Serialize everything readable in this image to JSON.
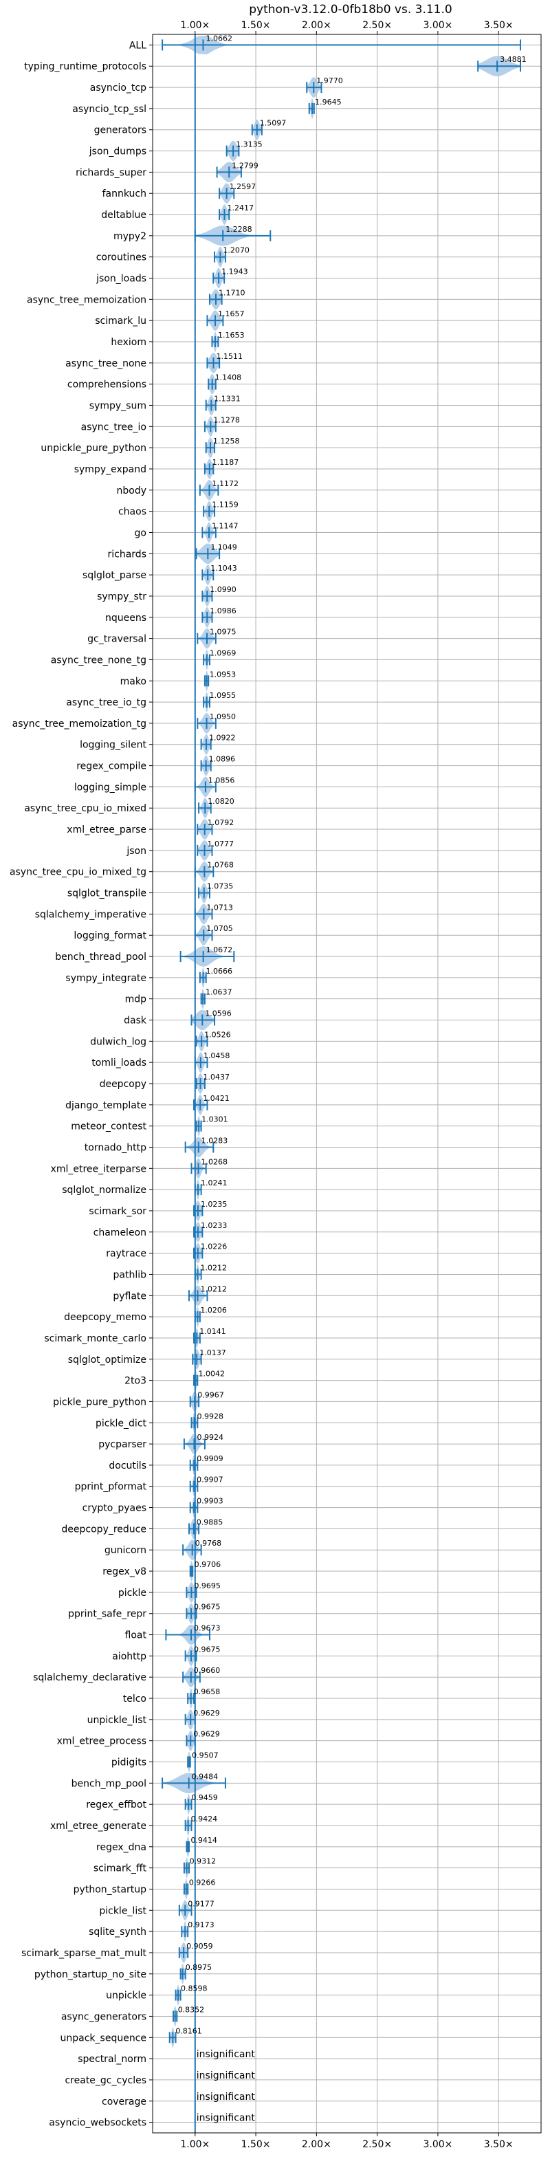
{
  "chart_data": {
    "type": "violin",
    "title": "python-v3.12.0-0fb18b0 vs. 3.11.0",
    "xlabel": "",
    "ylabel": "",
    "xlim": [
      0.65,
      3.85
    ],
    "xticks": [
      1.0,
      1.5,
      2.0,
      2.5,
      3.0,
      3.5
    ],
    "xtick_labels": [
      "1.00×",
      "1.50×",
      "2.00×",
      "2.50×",
      "3.00×",
      "3.50×"
    ],
    "reference_line": 1.0,
    "grid": true,
    "colors": {
      "violin": "#a8c8e6",
      "marker": "#1f77b4",
      "reference": "#1f77b4",
      "grid": "#b0b0b0"
    },
    "insignificant_text": "insignificant",
    "benchmarks": [
      {
        "name": "ALL",
        "value": 1.0662,
        "label": "1.0662",
        "min": 0.73,
        "max": 3.68,
        "spread": 0.08
      },
      {
        "name": "typing_runtime_protocols",
        "value": 3.4881,
        "label": "3.4881",
        "min": 3.33,
        "max": 3.68,
        "spread": 0.09
      },
      {
        "name": "asyncio_tcp",
        "value": 1.977,
        "label": "1.9770",
        "min": 1.92,
        "max": 2.04,
        "spread": 0.03
      },
      {
        "name": "asyncio_tcp_ssl",
        "value": 1.9645,
        "label": "1.9645",
        "min": 1.94,
        "max": 1.98,
        "spread": 0.01
      },
      {
        "name": "generators",
        "value": 1.5097,
        "label": "1.5097",
        "min": 1.47,
        "max": 1.55,
        "spread": 0.02
      },
      {
        "name": "json_dumps",
        "value": 1.3135,
        "label": "1.3135",
        "min": 1.26,
        "max": 1.36,
        "spread": 0.03
      },
      {
        "name": "richards_super",
        "value": 1.2799,
        "label": "1.2799",
        "min": 1.18,
        "max": 1.38,
        "spread": 0.05
      },
      {
        "name": "fannkuch",
        "value": 1.2597,
        "label": "1.2597",
        "min": 1.2,
        "max": 1.32,
        "spread": 0.03
      },
      {
        "name": "deltablue",
        "value": 1.2417,
        "label": "1.2417",
        "min": 1.2,
        "max": 1.28,
        "spread": 0.02
      },
      {
        "name": "mypy2",
        "value": 1.2288,
        "label": "1.2288",
        "min": 1.0,
        "max": 1.62,
        "spread": 0.1
      },
      {
        "name": "coroutines",
        "value": 1.207,
        "label": "1.2070",
        "min": 1.16,
        "max": 1.25,
        "spread": 0.02
      },
      {
        "name": "json_loads",
        "value": 1.1943,
        "label": "1.1943",
        "min": 1.15,
        "max": 1.24,
        "spread": 0.02
      },
      {
        "name": "async_tree_memoization",
        "value": 1.171,
        "label": "1.1710",
        "min": 1.12,
        "max": 1.22,
        "spread": 0.03
      },
      {
        "name": "scimark_lu",
        "value": 1.1657,
        "label": "1.1657",
        "min": 1.1,
        "max": 1.23,
        "spread": 0.03
      },
      {
        "name": "hexiom",
        "value": 1.1653,
        "label": "1.1653",
        "min": 1.14,
        "max": 1.19,
        "spread": 0.01
      },
      {
        "name": "async_tree_none",
        "value": 1.1511,
        "label": "1.1511",
        "min": 1.1,
        "max": 1.2,
        "spread": 0.03
      },
      {
        "name": "comprehensions",
        "value": 1.1408,
        "label": "1.1408",
        "min": 1.11,
        "max": 1.17,
        "spread": 0.02
      },
      {
        "name": "sympy_sum",
        "value": 1.1331,
        "label": "1.1331",
        "min": 1.09,
        "max": 1.17,
        "spread": 0.02
      },
      {
        "name": "async_tree_io",
        "value": 1.1278,
        "label": "1.1278",
        "min": 1.08,
        "max": 1.17,
        "spread": 0.02
      },
      {
        "name": "unpickle_pure_python",
        "value": 1.1258,
        "label": "1.1258",
        "min": 1.09,
        "max": 1.16,
        "spread": 0.02
      },
      {
        "name": "sympy_expand",
        "value": 1.1187,
        "label": "1.1187",
        "min": 1.08,
        "max": 1.15,
        "spread": 0.02
      },
      {
        "name": "nbody",
        "value": 1.1172,
        "label": "1.1172",
        "min": 1.04,
        "max": 1.19,
        "spread": 0.03
      },
      {
        "name": "chaos",
        "value": 1.1159,
        "label": "1.1159",
        "min": 1.07,
        "max": 1.16,
        "spread": 0.02
      },
      {
        "name": "go",
        "value": 1.1147,
        "label": "1.1147",
        "min": 1.06,
        "max": 1.17,
        "spread": 0.02
      },
      {
        "name": "richards",
        "value": 1.1049,
        "label": "1.1049",
        "min": 1.01,
        "max": 1.2,
        "spread": 0.05
      },
      {
        "name": "sqlglot_parse",
        "value": 1.1043,
        "label": "1.1043",
        "min": 1.06,
        "max": 1.15,
        "spread": 0.02
      },
      {
        "name": "sympy_str",
        "value": 1.099,
        "label": "1.0990",
        "min": 1.06,
        "max": 1.14,
        "spread": 0.02
      },
      {
        "name": "nqueens",
        "value": 1.0986,
        "label": "1.0986",
        "min": 1.06,
        "max": 1.14,
        "spread": 0.02
      },
      {
        "name": "gc_traversal",
        "value": 1.0975,
        "label": "1.0975",
        "min": 1.02,
        "max": 1.17,
        "spread": 0.03
      },
      {
        "name": "async_tree_none_tg",
        "value": 1.0969,
        "label": "1.0969",
        "min": 1.07,
        "max": 1.12,
        "spread": 0.01
      },
      {
        "name": "mako",
        "value": 1.0953,
        "label": "1.0953",
        "min": 1.08,
        "max": 1.11,
        "spread": 0.01
      },
      {
        "name": "async_tree_io_tg",
        "value": 1.0955,
        "label": "1.0955",
        "min": 1.07,
        "max": 1.12,
        "spread": 0.01
      },
      {
        "name": "async_tree_memoization_tg",
        "value": 1.095,
        "label": "1.0950",
        "min": 1.02,
        "max": 1.17,
        "spread": 0.03
      },
      {
        "name": "logging_silent",
        "value": 1.0922,
        "label": "1.0922",
        "min": 1.05,
        "max": 1.13,
        "spread": 0.02
      },
      {
        "name": "regex_compile",
        "value": 1.0896,
        "label": "1.0896",
        "min": 1.05,
        "max": 1.13,
        "spread": 0.02
      },
      {
        "name": "logging_simple",
        "value": 1.0856,
        "label": "1.0856",
        "min": 1.0,
        "max": 1.17,
        "spread": 0.03
      },
      {
        "name": "async_tree_cpu_io_mixed",
        "value": 1.082,
        "label": "1.0820",
        "min": 1.03,
        "max": 1.13,
        "spread": 0.02
      },
      {
        "name": "xml_etree_parse",
        "value": 1.0792,
        "label": "1.0792",
        "min": 1.02,
        "max": 1.14,
        "spread": 0.03
      },
      {
        "name": "json",
        "value": 1.0777,
        "label": "1.0777",
        "min": 1.02,
        "max": 1.14,
        "spread": 0.03
      },
      {
        "name": "async_tree_cpu_io_mixed_tg",
        "value": 1.0768,
        "label": "1.0768",
        "min": 1.0,
        "max": 1.15,
        "spread": 0.03
      },
      {
        "name": "sqlglot_transpile",
        "value": 1.0735,
        "label": "1.0735",
        "min": 1.03,
        "max": 1.12,
        "spread": 0.02
      },
      {
        "name": "sqlalchemy_imperative",
        "value": 1.0713,
        "label": "1.0713",
        "min": 1.0,
        "max": 1.14,
        "spread": 0.03
      },
      {
        "name": "logging_format",
        "value": 1.0705,
        "label": "1.0705",
        "min": 1.0,
        "max": 1.14,
        "spread": 0.03
      },
      {
        "name": "bench_thread_pool",
        "value": 1.0672,
        "label": "1.0672",
        "min": 0.88,
        "max": 1.32,
        "spread": 0.07
      },
      {
        "name": "sympy_integrate",
        "value": 1.0666,
        "label": "1.0666",
        "min": 1.04,
        "max": 1.09,
        "spread": 0.01
      },
      {
        "name": "mdp",
        "value": 1.0637,
        "label": "1.0637",
        "min": 1.05,
        "max": 1.08,
        "spread": 0.01
      },
      {
        "name": "dask",
        "value": 1.0596,
        "label": "1.0596",
        "min": 0.97,
        "max": 1.16,
        "spread": 0.05
      },
      {
        "name": "dulwich_log",
        "value": 1.0526,
        "label": "1.0526",
        "min": 1.01,
        "max": 1.1,
        "spread": 0.02
      },
      {
        "name": "tomli_loads",
        "value": 1.0458,
        "label": "1.0458",
        "min": 1.0,
        "max": 1.1,
        "spread": 0.02
      },
      {
        "name": "deepcopy",
        "value": 1.0437,
        "label": "1.0437",
        "min": 1.01,
        "max": 1.08,
        "spread": 0.02
      },
      {
        "name": "django_template",
        "value": 1.0421,
        "label": "1.0421",
        "min": 0.99,
        "max": 1.1,
        "spread": 0.02
      },
      {
        "name": "meteor_contest",
        "value": 1.0301,
        "label": "1.0301",
        "min": 1.01,
        "max": 1.05,
        "spread": 0.01
      },
      {
        "name": "tornado_http",
        "value": 1.0283,
        "label": "1.0283",
        "min": 0.92,
        "max": 1.15,
        "spread": 0.04
      },
      {
        "name": "xml_etree_iterparse",
        "value": 1.0268,
        "label": "1.0268",
        "min": 0.97,
        "max": 1.09,
        "spread": 0.02
      },
      {
        "name": "sqlglot_normalize",
        "value": 1.0241,
        "label": "1.0241",
        "min": 1.0,
        "max": 1.05,
        "spread": 0.01
      },
      {
        "name": "scimark_sor",
        "value": 1.0235,
        "label": "1.0235",
        "min": 0.99,
        "max": 1.06,
        "spread": 0.02
      },
      {
        "name": "chameleon",
        "value": 1.0233,
        "label": "1.0233",
        "min": 0.99,
        "max": 1.06,
        "spread": 0.02
      },
      {
        "name": "raytrace",
        "value": 1.0226,
        "label": "1.0226",
        "min": 0.99,
        "max": 1.06,
        "spread": 0.02
      },
      {
        "name": "pathlib",
        "value": 1.0212,
        "label": "1.0212",
        "min": 1.0,
        "max": 1.05,
        "spread": 0.01
      },
      {
        "name": "pyflate",
        "value": 1.0212,
        "label": "1.0212",
        "min": 0.95,
        "max": 1.1,
        "spread": 0.03
      },
      {
        "name": "deepcopy_memo",
        "value": 1.0206,
        "label": "1.0206",
        "min": 1.0,
        "max": 1.04,
        "spread": 0.01
      },
      {
        "name": "scimark_monte_carlo",
        "value": 1.0141,
        "label": "1.0141",
        "min": 0.99,
        "max": 1.04,
        "spread": 0.01
      },
      {
        "name": "sqlglot_optimize",
        "value": 1.0137,
        "label": "1.0137",
        "min": 0.98,
        "max": 1.05,
        "spread": 0.02
      },
      {
        "name": "2to3",
        "value": 1.0042,
        "label": "1.0042",
        "min": 0.99,
        "max": 1.02,
        "spread": 0.01
      },
      {
        "name": "pickle_pure_python",
        "value": 0.9967,
        "label": "0.9967",
        "min": 0.96,
        "max": 1.03,
        "spread": 0.02
      },
      {
        "name": "pickle_dict",
        "value": 0.9928,
        "label": "0.9928",
        "min": 0.97,
        "max": 1.02,
        "spread": 0.01
      },
      {
        "name": "pycparser",
        "value": 0.9924,
        "label": "0.9924",
        "min": 0.91,
        "max": 1.08,
        "spread": 0.03
      },
      {
        "name": "docutils",
        "value": 0.9909,
        "label": "0.9909",
        "min": 0.96,
        "max": 1.02,
        "spread": 0.01
      },
      {
        "name": "pprint_pformat",
        "value": 0.9907,
        "label": "0.9907",
        "min": 0.96,
        "max": 1.02,
        "spread": 0.01
      },
      {
        "name": "crypto_pyaes",
        "value": 0.9903,
        "label": "0.9903",
        "min": 0.96,
        "max": 1.02,
        "spread": 0.01
      },
      {
        "name": "deepcopy_reduce",
        "value": 0.9885,
        "label": "0.9885",
        "min": 0.95,
        "max": 1.03,
        "spread": 0.02
      },
      {
        "name": "gunicorn",
        "value": 0.9768,
        "label": "0.9768",
        "min": 0.9,
        "max": 1.05,
        "spread": 0.03
      },
      {
        "name": "regex_v8",
        "value": 0.9706,
        "label": "0.9706",
        "min": 0.96,
        "max": 0.98,
        "spread": 0.01
      },
      {
        "name": "pickle",
        "value": 0.9695,
        "label": "0.9695",
        "min": 0.93,
        "max": 1.01,
        "spread": 0.02
      },
      {
        "name": "pprint_safe_repr",
        "value": 0.9675,
        "label": "0.9675",
        "min": 0.93,
        "max": 1.01,
        "spread": 0.02
      },
      {
        "name": "float",
        "value": 0.9673,
        "label": "0.9673",
        "min": 0.76,
        "max": 1.12,
        "spread": 0.04
      },
      {
        "name": "aiohttp",
        "value": 0.9675,
        "label": "0.9675",
        "min": 0.92,
        "max": 1.01,
        "spread": 0.02
      },
      {
        "name": "sqlalchemy_declarative",
        "value": 0.966,
        "label": "0.9660",
        "min": 0.9,
        "max": 1.04,
        "spread": 0.03
      },
      {
        "name": "telco",
        "value": 0.9658,
        "label": "0.9658",
        "min": 0.94,
        "max": 0.99,
        "spread": 0.01
      },
      {
        "name": "unpickle_list",
        "value": 0.9629,
        "label": "0.9629",
        "min": 0.92,
        "max": 1.0,
        "spread": 0.02
      },
      {
        "name": "xml_etree_process",
        "value": 0.9629,
        "label": "0.9629",
        "min": 0.93,
        "max": 1.0,
        "spread": 0.02
      },
      {
        "name": "pidigits",
        "value": 0.9507,
        "label": "0.9507",
        "min": 0.94,
        "max": 0.96,
        "spread": 0.01
      },
      {
        "name": "bench_mp_pool",
        "value": 0.9484,
        "label": "0.9484",
        "min": 0.73,
        "max": 1.25,
        "spread": 0.09
      },
      {
        "name": "regex_effbot",
        "value": 0.9459,
        "label": "0.9459",
        "min": 0.92,
        "max": 0.97,
        "spread": 0.01
      },
      {
        "name": "xml_etree_generate",
        "value": 0.9424,
        "label": "0.9424",
        "min": 0.92,
        "max": 0.97,
        "spread": 0.01
      },
      {
        "name": "regex_dna",
        "value": 0.9414,
        "label": "0.9414",
        "min": 0.93,
        "max": 0.95,
        "spread": 0.01
      },
      {
        "name": "scimark_fft",
        "value": 0.9312,
        "label": "0.9312",
        "min": 0.91,
        "max": 0.95,
        "spread": 0.01
      },
      {
        "name": "python_startup",
        "value": 0.9266,
        "label": "0.9266",
        "min": 0.91,
        "max": 0.94,
        "spread": 0.01
      },
      {
        "name": "pickle_list",
        "value": 0.9177,
        "label": "0.9177",
        "min": 0.87,
        "max": 0.97,
        "spread": 0.02
      },
      {
        "name": "sqlite_synth",
        "value": 0.9173,
        "label": "0.9173",
        "min": 0.89,
        "max": 0.94,
        "spread": 0.01
      },
      {
        "name": "scimark_sparse_mat_mult",
        "value": 0.9059,
        "label": "0.9059",
        "min": 0.87,
        "max": 0.94,
        "spread": 0.02
      },
      {
        "name": "python_startup_no_site",
        "value": 0.8975,
        "label": "0.8975",
        "min": 0.88,
        "max": 0.92,
        "spread": 0.01
      },
      {
        "name": "unpickle",
        "value": 0.8598,
        "label": "0.8598",
        "min": 0.84,
        "max": 0.88,
        "spread": 0.01
      },
      {
        "name": "async_generators",
        "value": 0.8352,
        "label": "0.8352",
        "min": 0.82,
        "max": 0.85,
        "spread": 0.01
      },
      {
        "name": "unpack_sequence",
        "value": 0.8161,
        "label": "0.8161",
        "min": 0.79,
        "max": 0.84,
        "spread": 0.01
      },
      {
        "name": "spectral_norm",
        "value": null,
        "label": "insignificant",
        "insignificant": true
      },
      {
        "name": "create_gc_cycles",
        "value": null,
        "label": "insignificant",
        "insignificant": true
      },
      {
        "name": "coverage",
        "value": null,
        "label": "insignificant",
        "insignificant": true
      },
      {
        "name": "asyncio_websockets",
        "value": null,
        "label": "insignificant",
        "insignificant": true
      }
    ]
  }
}
